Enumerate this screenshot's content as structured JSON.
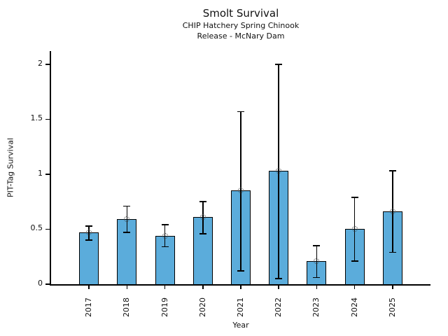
{
  "chart_data": {
    "type": "bar",
    "title": "Smolt Survival",
    "subtitle1": "CHIP Hatchery Spring Chinook",
    "subtitle2": "Release - McNary Dam",
    "xlabel": "Year",
    "ylabel": "PIT-Tag Survival",
    "categories": [
      "2017",
      "2018",
      "2019",
      "2020",
      "2021",
      "2022",
      "2023",
      "2024",
      "2025"
    ],
    "values": [
      0.47,
      0.59,
      0.44,
      0.61,
      0.85,
      1.03,
      0.21,
      0.5,
      0.66
    ],
    "error_low": [
      0.4,
      0.47,
      0.34,
      0.46,
      0.12,
      0.05,
      0.06,
      0.21,
      0.29
    ],
    "error_high": [
      0.53,
      0.71,
      0.54,
      0.75,
      1.57,
      2.0,
      0.35,
      0.79,
      1.03
    ],
    "ylim": [
      0,
      2.12
    ],
    "yticks": {
      "values": [
        0,
        0.5,
        1,
        1.5,
        2
      ],
      "labels": [
        "0",
        "0.5",
        "1",
        "1.5",
        "2"
      ]
    },
    "grid": false,
    "legend": null,
    "marker": "open-circle",
    "colors": {
      "bar_fill": "#5BACDB",
      "bar_edge": "#000000",
      "error_bar": "#000000",
      "text": "#111111",
      "background": "#ffffff"
    }
  }
}
